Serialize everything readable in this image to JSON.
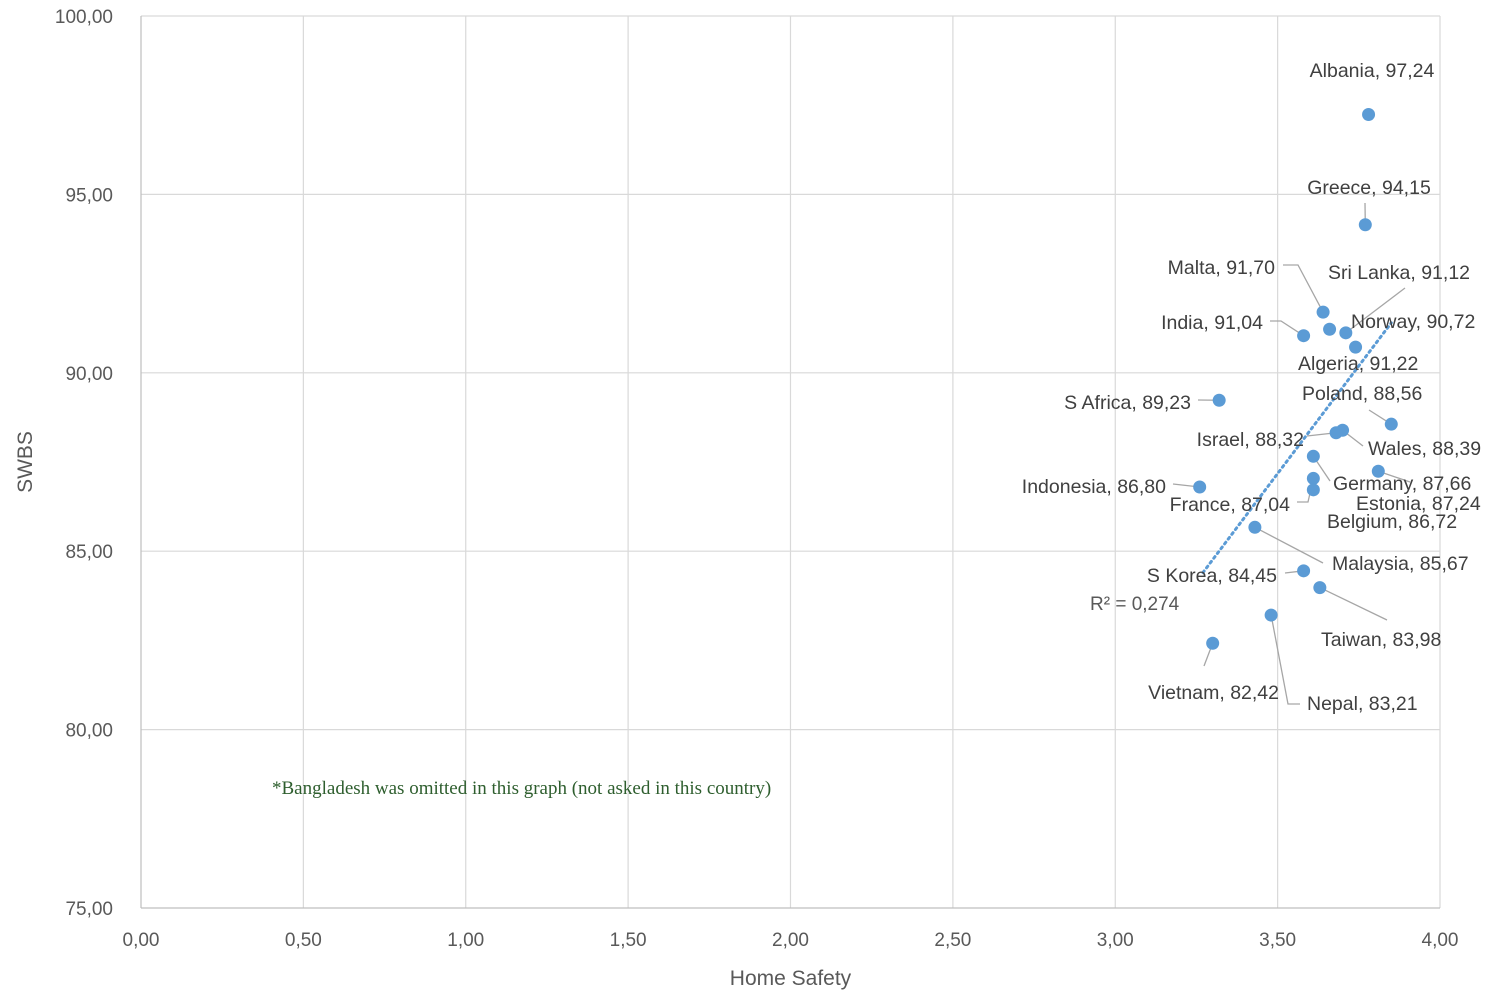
{
  "chart_data": {
    "type": "scatter",
    "xlabel": "Home Safety",
    "ylabel": "SWBS",
    "xlim": [
      0,
      4
    ],
    "ylim": [
      75,
      100
    ],
    "x_ticks": [
      "0,00",
      "0,50",
      "1,00",
      "1,50",
      "2,00",
      "2,50",
      "3,00",
      "3,50",
      "4,00"
    ],
    "y_ticks": [
      "75,00",
      "80,00",
      "85,00",
      "90,00",
      "95,00",
      "100,00"
    ],
    "grid": true,
    "marker_color": "#5b9bd5",
    "trendline": {
      "type": "linear",
      "style": "dotted",
      "color": "#5b9bd5",
      "label": "R² = 0,274",
      "from": [
        3.27,
        84.4
      ],
      "to": [
        3.85,
        91.4
      ]
    },
    "note": "*Bangladesh was omitted in this graph (not asked in this country)",
    "points": [
      {
        "name": "Albania",
        "label": "Albania, 97,24",
        "x": 3.78,
        "y": 97.24
      },
      {
        "name": "Greece",
        "label": "Greece, 94,15",
        "x": 3.77,
        "y": 94.15
      },
      {
        "name": "Malta",
        "label": "Malta, 91,70",
        "x": 3.64,
        "y": 91.7
      },
      {
        "name": "Sri Lanka",
        "label": "Sri Lanka, 91,12",
        "x": 3.71,
        "y": 91.12
      },
      {
        "name": "India",
        "label": "India, 91,04",
        "x": 3.58,
        "y": 91.04
      },
      {
        "name": "Algeria",
        "label": "Algeria, 91,22",
        "x": 3.66,
        "y": 91.22
      },
      {
        "name": "Norway",
        "label": "Norway, 90,72",
        "x": 3.74,
        "y": 90.72
      },
      {
        "name": "S Africa",
        "label": "S Africa, 89,23",
        "x": 3.32,
        "y": 89.23
      },
      {
        "name": "Poland",
        "label": "Poland, 88,56",
        "x": 3.85,
        "y": 88.56
      },
      {
        "name": "Wales",
        "label": "Wales, 88,39",
        "x": 3.7,
        "y": 88.39
      },
      {
        "name": "Israel",
        "label": "Israel, 88,32",
        "x": 3.68,
        "y": 88.32
      },
      {
        "name": "Germany",
        "label": "Germany, 87,66",
        "x": 3.61,
        "y": 87.66
      },
      {
        "name": "Estonia",
        "label": "Estonia, 87,24",
        "x": 3.81,
        "y": 87.24
      },
      {
        "name": "France",
        "label": "France, 87,04",
        "x": 3.61,
        "y": 87.04
      },
      {
        "name": "Indonesia",
        "label": "Indonesia, 86,80",
        "x": 3.26,
        "y": 86.8
      },
      {
        "name": "Belgium",
        "label": "Belgium, 86,72",
        "x": 3.61,
        "y": 86.72
      },
      {
        "name": "Malaysia",
        "label": "Malaysia, 85,67",
        "x": 3.43,
        "y": 85.67
      },
      {
        "name": "S Korea",
        "label": "S Korea, 84,45",
        "x": 3.58,
        "y": 84.45
      },
      {
        "name": "Taiwan",
        "label": "Taiwan, 83,98",
        "x": 3.63,
        "y": 83.98
      },
      {
        "name": "Nepal",
        "label": "Nepal, 83,21",
        "x": 3.48,
        "y": 83.21
      },
      {
        "name": "Vietnam",
        "label": "Vietnam, 82,42",
        "x": 3.3,
        "y": 82.42
      }
    ]
  }
}
